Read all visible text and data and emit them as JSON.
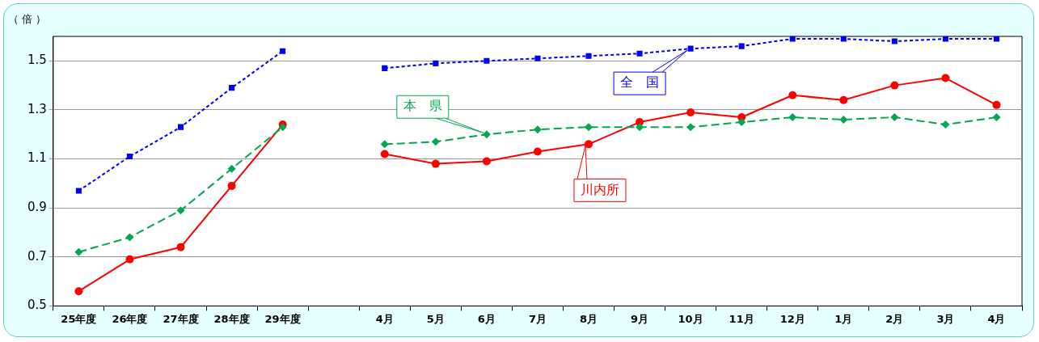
{
  "chart_data": {
    "type": "line",
    "ylabel": "（ 倍 ）",
    "categories": [
      "25年度",
      "26年度",
      "27年度",
      "28年度",
      "29年度",
      null,
      "4月",
      "5月",
      "6月",
      "7月",
      "8月",
      "9月",
      "10月",
      "11月",
      "12月",
      "1月",
      "2月",
      "3月",
      "4月"
    ],
    "series": [
      {
        "name": "全　国",
        "color": "#0000ff",
        "marker": "square",
        "line_style": "dotted",
        "values": [
          0.97,
          1.11,
          1.23,
          1.39,
          1.54,
          null,
          1.47,
          1.49,
          1.5,
          1.51,
          1.52,
          1.53,
          1.55,
          1.56,
          1.59,
          1.59,
          1.58,
          1.59,
          1.59
        ]
      },
      {
        "name": "本　県",
        "color": "#00a84f",
        "marker": "diamond",
        "line_style": "dashed",
        "values": [
          0.72,
          0.78,
          0.89,
          1.06,
          1.23,
          null,
          1.16,
          1.17,
          1.2,
          1.22,
          1.23,
          1.23,
          1.23,
          1.25,
          1.27,
          1.26,
          1.27,
          1.24,
          1.27
        ]
      },
      {
        "name": "川内所",
        "color": "#ff0000",
        "marker": "circle",
        "line_style": "solid",
        "values": [
          0.56,
          0.69,
          0.74,
          0.99,
          1.24,
          null,
          1.12,
          1.08,
          1.09,
          1.13,
          1.16,
          1.25,
          1.29,
          1.27,
          1.36,
          1.34,
          1.4,
          1.43,
          1.32
        ]
      }
    ],
    "ylim": [
      0.5,
      1.6
    ],
    "yticks": [
      0.5,
      0.7,
      0.9,
      1.1,
      1.3,
      1.5
    ],
    "grid": "y"
  }
}
